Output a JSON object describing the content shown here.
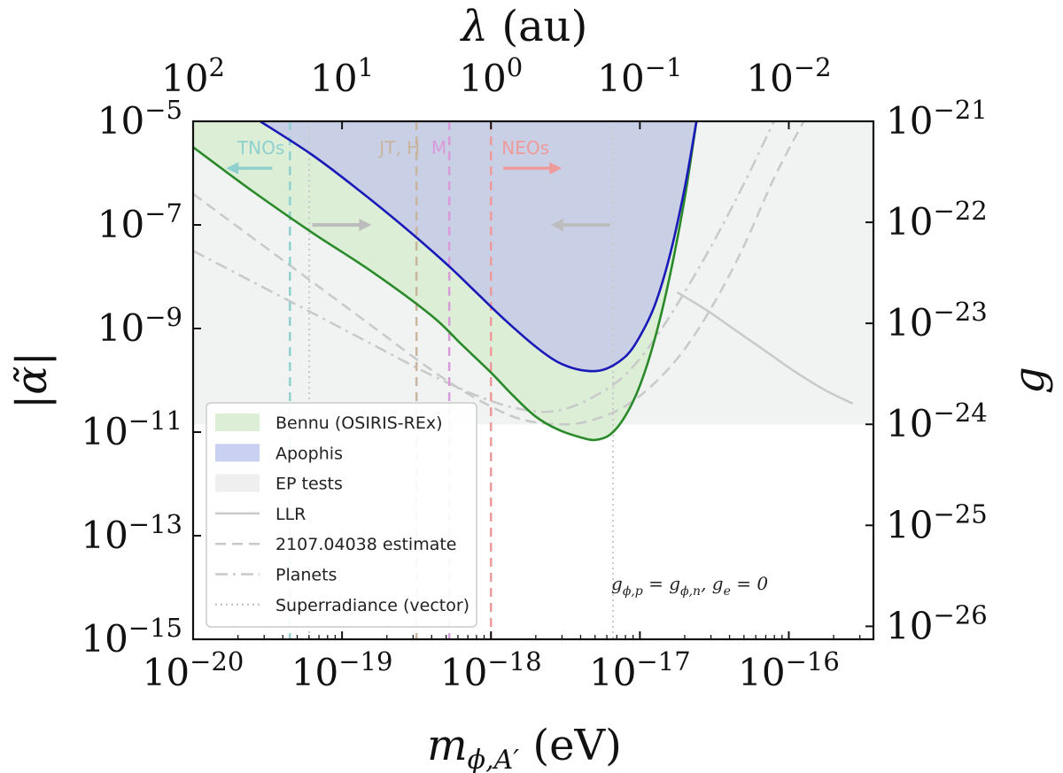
{
  "chart_data": {
    "type": "line",
    "title": "",
    "xlabel": "m_{φ,A′} (eV)",
    "xlabel_main": "m",
    "xlabel_sub": "ϕ,A′",
    "xlabel_unit": "(eV)",
    "x_top_label_main": "λ",
    "x_top_label_unit": "(au)",
    "ylabel": "|α̃|",
    "y_right_label": "g",
    "xscale": "log",
    "yscale": "log",
    "xlim": [
      1e-20,
      3.7e-16
    ],
    "ylim": [
      1e-15,
      1e-05
    ],
    "x_ticks": [
      {
        "value": 1e-20,
        "base": "10",
        "exp": "−20"
      },
      {
        "value": 1e-19,
        "base": "10",
        "exp": "−19"
      },
      {
        "value": 1e-18,
        "base": "10",
        "exp": "−18"
      },
      {
        "value": 1e-17,
        "base": "10",
        "exp": "−17"
      },
      {
        "value": 1e-16,
        "base": "10",
        "exp": "−16"
      }
    ],
    "x_top_ticks": [
      {
        "value": 100,
        "base": "10",
        "exp": "2"
      },
      {
        "value": 10,
        "base": "10",
        "exp": "1"
      },
      {
        "value": 1,
        "base": "10",
        "exp": "0"
      },
      {
        "value": 0.1,
        "base": "10",
        "exp": "−1"
      },
      {
        "value": 0.01,
        "base": "10",
        "exp": "−2"
      }
    ],
    "y_ticks": [
      {
        "value": 1e-05,
        "base": "10",
        "exp": "−5"
      },
      {
        "value": 1e-07,
        "base": "10",
        "exp": "−7"
      },
      {
        "value": 1e-09,
        "base": "10",
        "exp": "−9"
      },
      {
        "value": 1e-11,
        "base": "10",
        "exp": "−11"
      },
      {
        "value": 1e-13,
        "base": "10",
        "exp": "−13"
      },
      {
        "value": 1e-15,
        "base": "10",
        "exp": "−15"
      }
    ],
    "y_right_ticks": [
      {
        "log_alpha": -5.0,
        "base": "10",
        "exp": "−21"
      },
      {
        "log_alpha": -6.95,
        "base": "10",
        "exp": "−22"
      },
      {
        "log_alpha": -8.9,
        "base": "10",
        "exp": "−23"
      },
      {
        "log_alpha": -10.85,
        "base": "10",
        "exp": "−24"
      },
      {
        "log_alpha": -12.8,
        "base": "10",
        "exp": "−25"
      },
      {
        "log_alpha": -14.75,
        "base": "10",
        "exp": "−26"
      }
    ],
    "series": [
      {
        "name": "Bennu (OSIRIS-REx)",
        "style": "solid",
        "color": "#2a8a2a",
        "fill": "#dcefd6",
        "log_x": [
          -20,
          -19.6,
          -19.2,
          -18.8,
          -18.4,
          -18.2,
          -18.0,
          -17.85,
          -17.7,
          -17.55,
          -17.4,
          -17.3,
          -17.2,
          -17.1,
          -17.0,
          -16.9,
          -16.8,
          -16.7,
          -16.62
        ],
        "log_y": [
          -5.5,
          -6.35,
          -7.15,
          -7.9,
          -8.75,
          -9.3,
          -9.85,
          -10.3,
          -10.7,
          -10.95,
          -11.1,
          -11.15,
          -11.05,
          -10.7,
          -10.1,
          -9.2,
          -8.0,
          -6.5,
          -5.0
        ]
      },
      {
        "name": "Apophis",
        "style": "solid",
        "color": "#1a1ab8",
        "fill": "#c9d0e6",
        "log_x": [
          -19.55,
          -19.2,
          -18.9,
          -18.6,
          -18.3,
          -18.1,
          -17.9,
          -17.7,
          -17.55,
          -17.4,
          -17.25,
          -17.1,
          -17.0,
          -16.9,
          -16.8,
          -16.7,
          -16.62
        ],
        "log_y": [
          -5.0,
          -5.65,
          -6.3,
          -7.0,
          -7.75,
          -8.3,
          -8.85,
          -9.35,
          -9.65,
          -9.8,
          -9.8,
          -9.55,
          -9.15,
          -8.55,
          -7.6,
          -6.3,
          -5.0
        ]
      },
      {
        "name": "EP tests",
        "style": "band",
        "color": "#f1f2f2",
        "upper_log_y": -5.0,
        "lower_log_y": -10.85
      },
      {
        "name": "LLR",
        "style": "solid",
        "color": "#c9c9c9",
        "log_x": [
          -16.75,
          -16.55,
          -16.35,
          -16.15,
          -15.95,
          -15.75,
          -15.57
        ],
        "log_y": [
          -8.3,
          -8.65,
          -9.05,
          -9.45,
          -9.85,
          -10.2,
          -10.45
        ]
      },
      {
        "name": "2107.04038 estimate",
        "style": "dashed",
        "color": "#c9c9c9",
        "log_x": [
          -20,
          -19.6,
          -19.2,
          -18.8,
          -18.4,
          -18.1,
          -17.8,
          -17.5,
          -17.3,
          -17.1,
          -16.9,
          -16.7,
          -16.5,
          -16.3,
          -16.1,
          -15.9
        ],
        "log_y": [
          -6.4,
          -7.25,
          -8.1,
          -8.95,
          -9.8,
          -10.35,
          -10.75,
          -10.85,
          -10.75,
          -10.5,
          -10.05,
          -9.4,
          -8.5,
          -7.4,
          -6.1,
          -5.0
        ]
      },
      {
        "name": "Planets",
        "style": "dashdot",
        "color": "#c9c9c9",
        "log_x": [
          -20,
          -19.6,
          -19.2,
          -18.8,
          -18.4,
          -18.0,
          -17.7,
          -17.5,
          -17.3,
          -17.1,
          -16.9,
          -16.7,
          -16.5,
          -16.3,
          -16.1
        ],
        "log_y": [
          -7.5,
          -8.1,
          -8.7,
          -9.3,
          -9.9,
          -10.4,
          -10.6,
          -10.55,
          -10.3,
          -9.9,
          -9.2,
          -8.3,
          -7.3,
          -6.2,
          -5.0
        ]
      },
      {
        "name": "Superradiance (vector)",
        "style": "dotted",
        "color": "#c9c9c9",
        "vertical_log_x": [
          -19.22,
          -17.18
        ]
      }
    ],
    "vertical_lines": [
      {
        "log_x": -19.35,
        "color": "#8fd0cf",
        "label": "TNOs",
        "arrow": "left"
      },
      {
        "log_x": -18.5,
        "color": "#c9b49e",
        "label": "JT, H",
        "arrow": "none"
      },
      {
        "log_x": -18.28,
        "color": "#d89ad8",
        "label": "M",
        "arrow": "none"
      },
      {
        "log_x": -18.0,
        "color": "#ee9a9a",
        "label": "NEOs",
        "arrow": "right"
      }
    ],
    "legend": {
      "placement": "lower-left",
      "entries": [
        {
          "label": "Bennu (OSIRIS-REx)",
          "swatch": "fill",
          "color": "#dcefd6"
        },
        {
          "label": "Apophis",
          "swatch": "fill",
          "color": "#c9d0f2"
        },
        {
          "label": "EP tests",
          "swatch": "fill",
          "color": "#efefef"
        },
        {
          "label": "LLR",
          "swatch": "solid",
          "color": "#c9c9c9"
        },
        {
          "label": "2107.04038 estimate",
          "swatch": "dashed",
          "color": "#c9c9c9"
        },
        {
          "label": "Planets",
          "swatch": "dashdot",
          "color": "#c9c9c9"
        },
        {
          "label": "Superradiance (vector)",
          "swatch": "dotted",
          "color": "#c9c9c9"
        }
      ]
    },
    "annotation_note": {
      "g_lhs": "g",
      "g_lhs_sub": "ϕ,p",
      "g_mid": " = g",
      "g_mid_sub": "ϕ,n",
      "g_sep": ",   g",
      "g_rhs_sub": "e",
      "g_rhs": " = 0"
    },
    "colors": {
      "axis": "#111111",
      "background": "#ffffff"
    }
  }
}
